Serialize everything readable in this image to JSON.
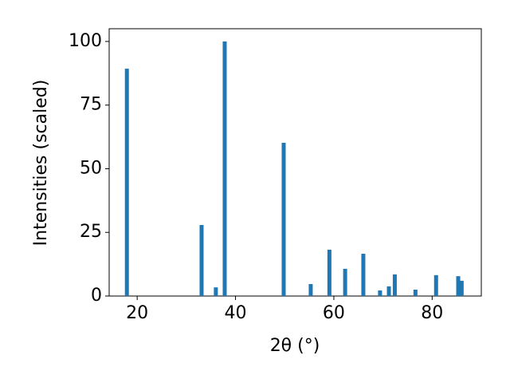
{
  "chart_data": {
    "type": "bar",
    "x_label": "2θ (°)",
    "y_label": "Intensities (scaled)",
    "x": [
      17.9,
      33.1,
      36.0,
      37.8,
      49.8,
      55.3,
      59.1,
      62.3,
      66.0,
      69.4,
      71.2,
      72.4,
      76.6,
      80.8,
      85.3,
      86.0
    ],
    "values": [
      89.3,
      27.9,
      3.4,
      100,
      60.2,
      4.7,
      18.2,
      10.7,
      16.6,
      2.2,
      3.8,
      8.5,
      2.5,
      8.2,
      7.8,
      6.0
    ],
    "color": "#1f77b4",
    "xlim": [
      14.3,
      90
    ],
    "xticks": [
      20,
      40,
      60,
      80
    ],
    "ylim": [
      0,
      105
    ],
    "yticks": [
      0,
      25,
      50,
      75,
      100
    ],
    "grid": false
  }
}
